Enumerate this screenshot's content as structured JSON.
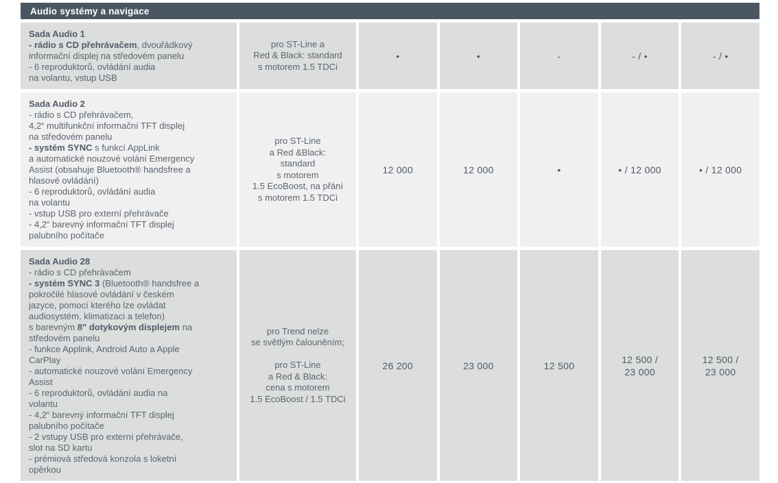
{
  "header": {
    "title": "Audio systémy a navigace"
  },
  "colors": {
    "header_bg": "#4a5763",
    "header_text": "#ffffff",
    "row_dark_bg": "#dcdddd",
    "row_light_bg": "#f0f0f1",
    "body_text": "#5a646f",
    "bullet": "#4e5a66"
  },
  "table": {
    "rows": [
      {
        "name": "Sada Audio 1",
        "description_runs": [
          {
            "bold": true,
            "text": "Sada Audio 1\n"
          },
          {
            "bold": true,
            "text": "- rádio s CD přehrávačem"
          },
          {
            "bold": false,
            "text": ", dvouřádkový\ninformační displej na středovém panelu\n- 6 reproduktorů, ovládání audia\nna volantu, vstup USB"
          }
        ],
        "note": "pro ST-Line a\nRed & Black: standard\ns motorem 1.5 TDCi",
        "values": [
          "•",
          "•",
          "-",
          "- / •",
          "- / •"
        ]
      },
      {
        "name": "Sada Audio 2",
        "description_runs": [
          {
            "bold": true,
            "text": "Sada Audio 2\n"
          },
          {
            "bold": false,
            "text": "- rádio s CD přehrávačem,\n4,2“ multifunkční informační TFT displej\nna středovém panelu\n"
          },
          {
            "bold": true,
            "text": "- systém SYNC"
          },
          {
            "bold": false,
            "text": " s funkcí AppLink\na automatické nouzové volání Emergency\nAssist (obsahuje Bluetooth® handsfree a\nhlasové ovládání)\n- 6 reproduktorů, ovládání audia\nna volantu\n- vstup USB pro externí přehrávače\n- 4,2“ barevný informační TFT displej\npalubního počítače"
          }
        ],
        "note": "pro ST-Line\na Red &Black:\nstandard\ns motorem\n1.5 EcoBoost, na přání\ns motorem 1.5 TDCi",
        "values": [
          "12 000",
          "12 000",
          "•",
          "• / 12 000",
          "• / 12 000"
        ]
      },
      {
        "name": "Sada Audio 28",
        "description_runs": [
          {
            "bold": true,
            "text": "Sada Audio 28\n"
          },
          {
            "bold": false,
            "text": "- rádio s CD přehrávačem\n"
          },
          {
            "bold": true,
            "text": "- systém SYNC 3"
          },
          {
            "bold": false,
            "text": " (Bluetooth® handsfree a\npokročilé hlasové ovládání v českém\njazyce, pomocí kterého lze ovládat\naudiosystém, klimatizaci a telefon)\ns barevným "
          },
          {
            "bold": true,
            "text": "8\" dotykovým displejem"
          },
          {
            "bold": false,
            "text": " na\nstředovém panelu\n- funkce Applink, Android Auto a Apple\nCarPlay\n- automatické nouzové volání Emergency\nAssist\n- 6 reproduktorů, ovládání audia na\nvolantu\n- 4,2“ barevný informační TFT displej\npalubního počítače\n- 2 vstupy USB pro externí přehrávače,\nslot na SD kartu\n- prémiová středová konzola s loketní\nopěrkou"
          }
        ],
        "note": "pro Trend nelze\nse světlým čalouněním;\n\npro ST-Line\na Red & Black:\ncena s motorem\n1.5 EcoBoost / 1.5 TDCi",
        "values": [
          "26 200",
          "23 000",
          "12 500",
          "12 500 /\n23 000",
          "12 500 /\n23 000"
        ]
      }
    ]
  }
}
